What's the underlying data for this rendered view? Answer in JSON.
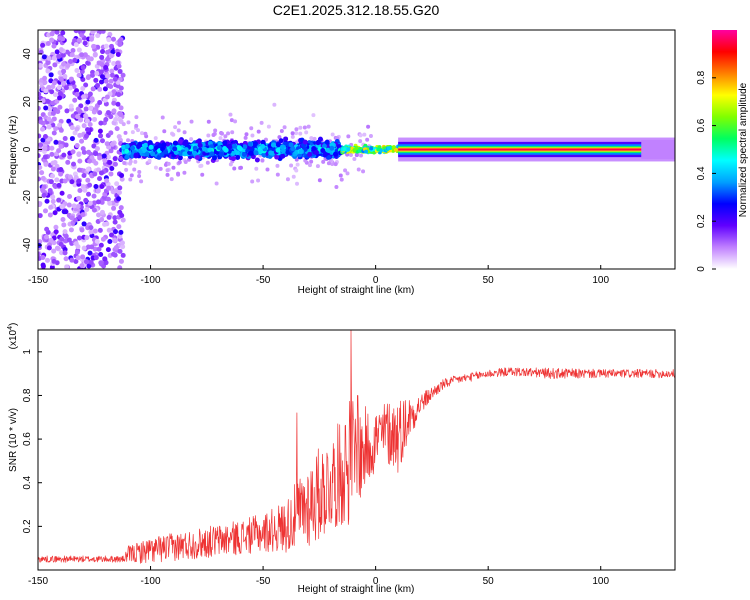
{
  "title": "C2E1.2025.312.18.55.G20",
  "chart_data": [
    {
      "type": "heatmap",
      "xlabel": "Height of straight line (km)",
      "ylabel": "Frequency (Hz)",
      "xlim": [
        -150,
        133
      ],
      "ylim": [
        -50,
        50
      ],
      "xticks": [
        -150,
        -100,
        -50,
        0,
        50,
        100
      ],
      "yticks": [
        -40,
        -20,
        0,
        20,
        40
      ],
      "colorbar": {
        "label": "Normalized spectral amplitude",
        "range": [
          0,
          1
        ],
        "ticks": [
          0,
          0.2,
          0.4,
          0.6,
          0.8
        ],
        "colormap": [
          "#ffffff",
          "#c080ff",
          "#6000ff",
          "#0000ff",
          "#00a0ff",
          "#00ffff",
          "#00ff60",
          "#80ff00",
          "#ffff00",
          "#ff8000",
          "#ff0000",
          "#ff00a0"
        ]
      },
      "regions": [
        {
          "name": "noise",
          "x": [
            -150,
            -112
          ],
          "y": [
            -50,
            50
          ],
          "amplitude": 0.2
        },
        {
          "name": "scattered",
          "x": [
            -112,
            -15
          ],
          "center_hz": 0,
          "spread_hz": 5,
          "amplitude": 0.35
        },
        {
          "name": "transition",
          "x": [
            -15,
            10
          ],
          "center_hz": 0,
          "spread_hz": 2,
          "amplitude": 0.55
        },
        {
          "name": "stable-tone",
          "x": [
            10,
            133
          ],
          "center_hz": 0,
          "spread_hz": 1,
          "amplitude": 1.0
        }
      ]
    },
    {
      "type": "line",
      "xlabel": "Height of straight line (km)",
      "ylabel": "SNR (10 * v/v)",
      "scale_label": "(x10",
      "scale_exp": "4",
      "xlim": [
        -150,
        133
      ],
      "ylim": [
        0,
        1.1
      ],
      "xticks": [
        -150,
        -100,
        -50,
        0,
        50,
        100
      ],
      "yticks": [
        0.2,
        0.4,
        0.6,
        0.8,
        1
      ],
      "color": "#ee3333",
      "envelope": {
        "x": [
          -150,
          -112,
          -110,
          -100,
          -80,
          -60,
          -50,
          -40,
          -35,
          -30,
          -25,
          -20,
          -15,
          -12,
          -10,
          -8,
          -5,
          0,
          5,
          10,
          15,
          20,
          25,
          30,
          35,
          40,
          50,
          60,
          80,
          100,
          133
        ],
        "mean": [
          0.05,
          0.05,
          0.07,
          0.09,
          0.12,
          0.15,
          0.17,
          0.2,
          0.25,
          0.3,
          0.35,
          0.4,
          0.45,
          0.5,
          0.52,
          0.5,
          0.55,
          0.6,
          0.63,
          0.62,
          0.7,
          0.76,
          0.81,
          0.85,
          0.87,
          0.88,
          0.9,
          0.91,
          0.9,
          0.9,
          0.9
        ],
        "spread": [
          0.015,
          0.015,
          0.04,
          0.06,
          0.07,
          0.08,
          0.09,
          0.12,
          0.16,
          0.2,
          0.22,
          0.22,
          0.25,
          0.3,
          0.28,
          0.25,
          0.2,
          0.15,
          0.15,
          0.18,
          0.1,
          0.05,
          0.03,
          0.025,
          0.02,
          0.02,
          0.02,
          0.02,
          0.025,
          0.02,
          0.02
        ]
      },
      "peaks": [
        {
          "x": -11,
          "y": 1.1
        },
        {
          "x": -8,
          "y": 0.8
        },
        {
          "x": -35,
          "y": 0.72
        },
        {
          "x": 5,
          "y": 0.72
        },
        {
          "x": 13,
          "y": 0.6
        }
      ]
    }
  ]
}
